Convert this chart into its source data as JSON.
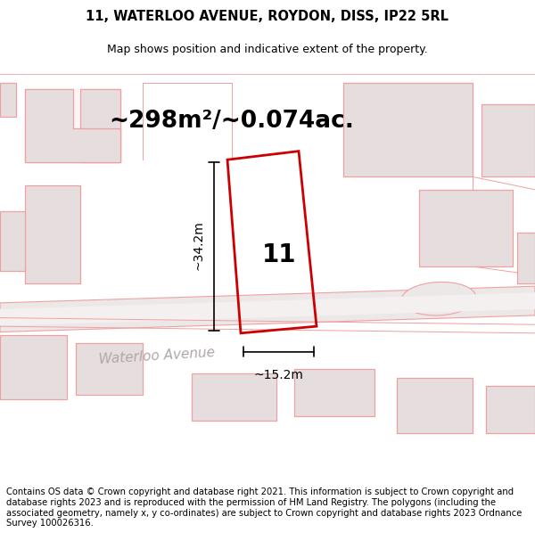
{
  "title": "11, WATERLOO AVENUE, ROYDON, DISS, IP22 5RL",
  "subtitle": "Map shows position and indicative extent of the property.",
  "area_text": "~298m²/~0.074ac.",
  "width_label": "~15.2m",
  "height_label": "~34.2m",
  "number_label": "11",
  "street_name": "Waterloo Avenue",
  "footer": "Contains OS data © Crown copyright and database right 2021. This information is subject to Crown copyright and database rights 2023 and is reproduced with the permission of HM Land Registry. The polygons (including the associated geometry, namely x, y co-ordinates) are subject to Crown copyright and database rights 2023 Ordnance Survey 100026316.",
  "bg_color": "#ffffff",
  "map_bg": "#faf6f6",
  "building_color": "#e6dede",
  "outline_color": "#f0a0a0",
  "plot_outline_color": "#cc0000",
  "title_fontsize": 10.5,
  "subtitle_fontsize": 9,
  "area_fontsize": 19,
  "label_fontsize": 10,
  "street_fontsize": 11,
  "number_fontsize": 20,
  "footer_fontsize": 7.2
}
